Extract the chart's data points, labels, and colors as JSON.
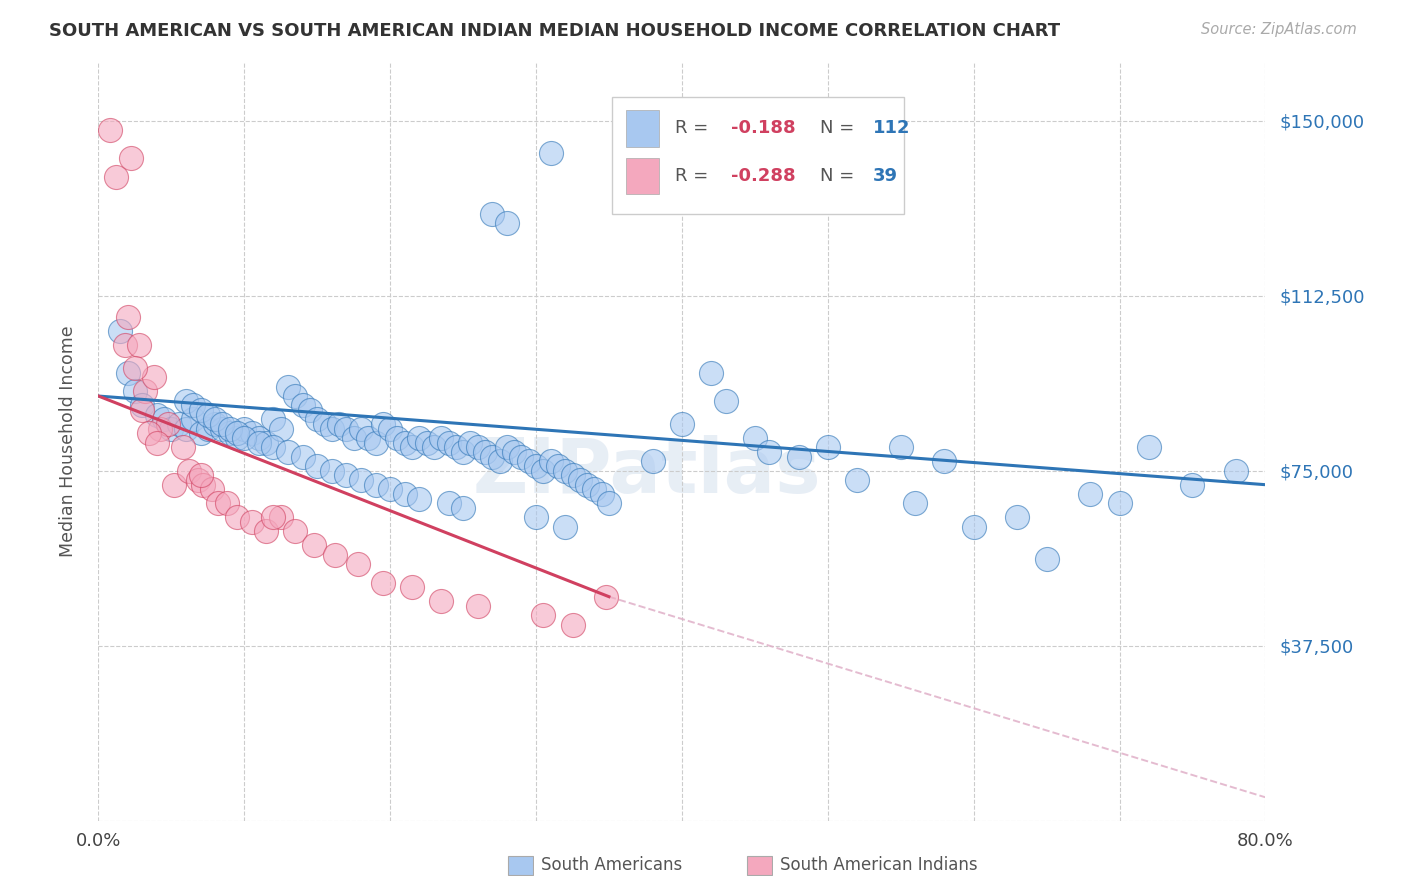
{
  "title": "SOUTH AMERICAN VS SOUTH AMERICAN INDIAN MEDIAN HOUSEHOLD INCOME CORRELATION CHART",
  "source": "Source: ZipAtlas.com",
  "ylabel": "Median Household Income",
  "xlim": [
    0.0,
    0.8
  ],
  "ylim": [
    0,
    162500
  ],
  "yticks": [
    0,
    37500,
    75000,
    112500,
    150000
  ],
  "ytick_labels": [
    "",
    "$37,500",
    "$75,000",
    "$112,500",
    "$150,000"
  ],
  "xticks": [
    0.0,
    0.1,
    0.2,
    0.3,
    0.4,
    0.5,
    0.6,
    0.7,
    0.8
  ],
  "blue_color": "#A8C8F0",
  "pink_color": "#F4A8BE",
  "blue_line_color": "#2E75B6",
  "pink_line_color": "#D04060",
  "dashed_line_color": "#E0B0C8",
  "watermark": "ZIPatlas",
  "blue_scatter_x": [
    0.31,
    0.27,
    0.28,
    0.015,
    0.02,
    0.025,
    0.03,
    0.04,
    0.045,
    0.05,
    0.055,
    0.06,
    0.065,
    0.07,
    0.075,
    0.08,
    0.085,
    0.09,
    0.095,
    0.1,
    0.105,
    0.11,
    0.115,
    0.12,
    0.125,
    0.13,
    0.135,
    0.14,
    0.145,
    0.15,
    0.155,
    0.16,
    0.165,
    0.17,
    0.175,
    0.18,
    0.185,
    0.19,
    0.195,
    0.2,
    0.205,
    0.21,
    0.215,
    0.22,
    0.225,
    0.23,
    0.235,
    0.24,
    0.245,
    0.25,
    0.255,
    0.26,
    0.265,
    0.27,
    0.275,
    0.28,
    0.285,
    0.29,
    0.295,
    0.3,
    0.305,
    0.31,
    0.315,
    0.32,
    0.325,
    0.33,
    0.335,
    0.34,
    0.345,
    0.35,
    0.38,
    0.4,
    0.42,
    0.43,
    0.45,
    0.46,
    0.48,
    0.5,
    0.52,
    0.55,
    0.56,
    0.58,
    0.6,
    0.63,
    0.65,
    0.68,
    0.7,
    0.72,
    0.75,
    0.78,
    0.06,
    0.065,
    0.07,
    0.075,
    0.08,
    0.085,
    0.09,
    0.095,
    0.1,
    0.11,
    0.12,
    0.13,
    0.14,
    0.15,
    0.16,
    0.17,
    0.18,
    0.19,
    0.2,
    0.21,
    0.22,
    0.24,
    0.25,
    0.3,
    0.32
  ],
  "blue_scatter_y": [
    143000,
    130000,
    128000,
    105000,
    96000,
    92000,
    89000,
    87000,
    86000,
    84000,
    85000,
    84000,
    86000,
    83000,
    84000,
    85000,
    84000,
    83000,
    82000,
    84000,
    83000,
    82000,
    81000,
    86000,
    84000,
    93000,
    91000,
    89000,
    88000,
    86000,
    85000,
    84000,
    85000,
    84000,
    82000,
    84000,
    82000,
    81000,
    85000,
    84000,
    82000,
    81000,
    80000,
    82000,
    81000,
    80000,
    82000,
    81000,
    80000,
    79000,
    81000,
    80000,
    79000,
    78000,
    77000,
    80000,
    79000,
    78000,
    77000,
    76000,
    75000,
    77000,
    76000,
    75000,
    74000,
    73000,
    72000,
    71000,
    70000,
    68000,
    77000,
    85000,
    96000,
    90000,
    82000,
    79000,
    78000,
    80000,
    73000,
    80000,
    68000,
    77000,
    63000,
    65000,
    56000,
    70000,
    68000,
    80000,
    72000,
    75000,
    90000,
    89000,
    88000,
    87000,
    86000,
    85000,
    84000,
    83000,
    82000,
    81000,
    80000,
    79000,
    78000,
    76000,
    75000,
    74000,
    73000,
    72000,
    71000,
    70000,
    69000,
    68000,
    67000,
    65000,
    63000
  ],
  "pink_scatter_x": [
    0.008,
    0.012,
    0.018,
    0.022,
    0.028,
    0.032,
    0.038,
    0.042,
    0.048,
    0.052,
    0.058,
    0.062,
    0.068,
    0.072,
    0.078,
    0.082,
    0.088,
    0.095,
    0.105,
    0.115,
    0.125,
    0.135,
    0.148,
    0.162,
    0.178,
    0.195,
    0.215,
    0.235,
    0.26,
    0.305,
    0.325,
    0.348,
    0.02,
    0.025,
    0.03,
    0.035,
    0.04,
    0.07,
    0.12
  ],
  "pink_scatter_y": [
    148000,
    138000,
    102000,
    142000,
    102000,
    92000,
    95000,
    84000,
    85000,
    72000,
    80000,
    75000,
    73000,
    72000,
    71000,
    68000,
    68000,
    65000,
    64000,
    62000,
    65000,
    62000,
    59000,
    57000,
    55000,
    51000,
    50000,
    47000,
    46000,
    44000,
    42000,
    48000,
    108000,
    97000,
    88000,
    83000,
    81000,
    74000,
    65000
  ],
  "blue_line_x": [
    0.0,
    0.8
  ],
  "blue_line_y": [
    91000,
    72000
  ],
  "pink_line_x": [
    0.0,
    0.35
  ],
  "pink_line_y": [
    91000,
    48000
  ],
  "dash_line_x": [
    0.35,
    0.8
  ],
  "dash_line_y": [
    48000,
    5000
  ]
}
